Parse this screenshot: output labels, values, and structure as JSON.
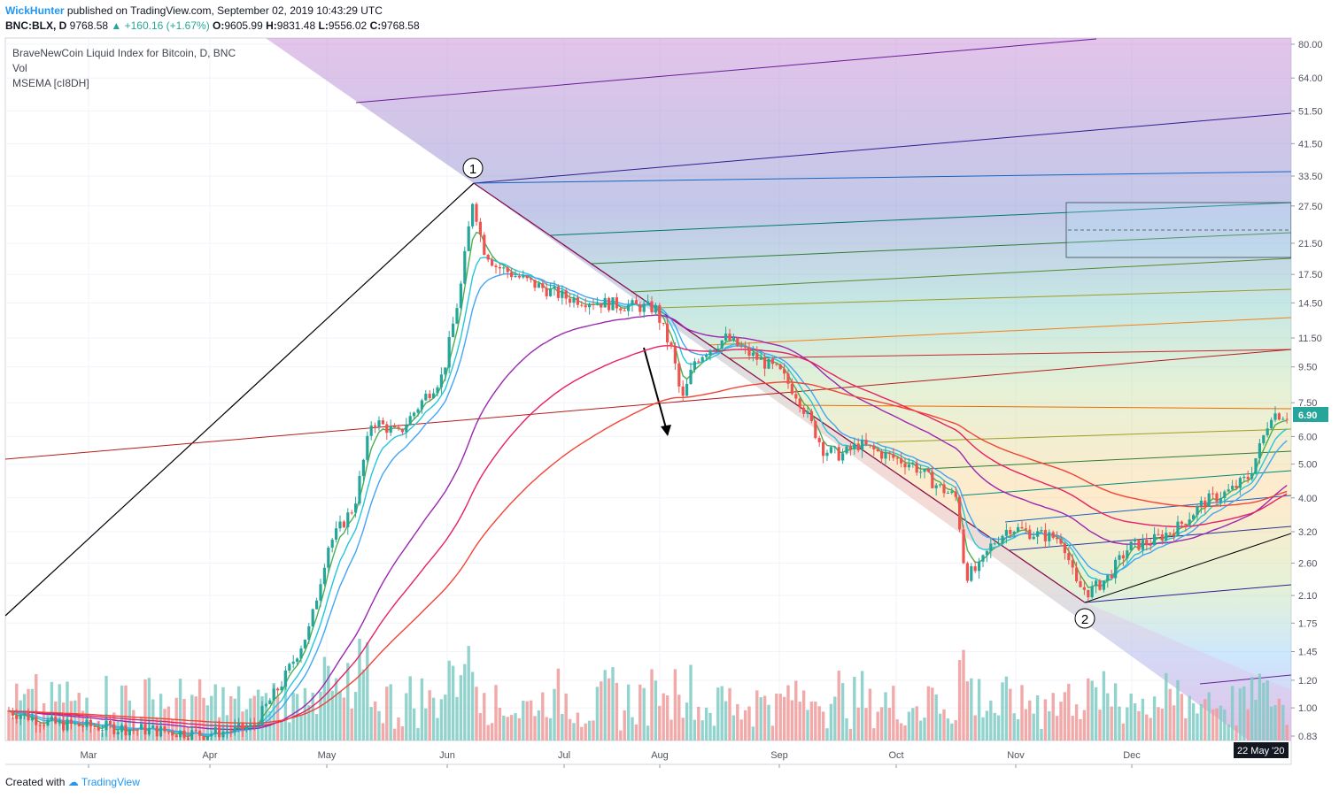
{
  "header": {
    "user": "WickHunter",
    "published": "published on TradingView.com, September 02, 2019 10:43:29 UTC",
    "symbol": "BNC:BLX, D",
    "last": "9768.58",
    "change": "▲ +160.16 (+1.67%)",
    "o_label": "O:",
    "o": "9605.99",
    "h_label": "H:",
    "h": "9831.48",
    "l_label": "L:",
    "l": "9556.02",
    "c_label": "C:",
    "c": "9768.58"
  },
  "legend": {
    "title": "BraveNewCoin Liquid Index for Bitcoin, D, BNC",
    "vol": "Vol",
    "msema": "MSEMA [cI8DH]"
  },
  "footer": {
    "created": "Created with",
    "brand": "TradingView"
  },
  "annotations": {
    "pivot1": "1",
    "pivot2": "2"
  },
  "price_label": "6.90",
  "date_label": "22 May '20",
  "chart_data": {
    "type": "candlestick",
    "y_scale": "log",
    "ylim": [
      0.8,
      84
    ],
    "y_ticks": [
      "80.00",
      "64.00",
      "51.50",
      "41.50",
      "33.50",
      "27.50",
      "21.50",
      "17.50",
      "14.50",
      "11.50",
      "9.50",
      "7.50",
      "6.00",
      "5.00",
      "4.00",
      "3.20",
      "2.60",
      "2.10",
      "1.75",
      "1.45",
      "1.20",
      "1.00",
      "0.83"
    ],
    "x_ticks": [
      "Mar",
      "Apr",
      "May",
      "Jun",
      "Jul",
      "Aug",
      "Sep",
      "Oct",
      "Nov",
      "Dec"
    ],
    "last_value": 6.9,
    "ema_lines": [
      {
        "name": "fast",
        "color": "#4caf50"
      },
      {
        "name": "med",
        "color": "#26c6da"
      },
      {
        "name": "slow",
        "color": "#42a5f5"
      },
      {
        "name": "ema100",
        "color": "#9c27b0"
      },
      {
        "name": "ema150",
        "color": "#e91e63"
      },
      {
        "name": "ema200",
        "color": "#f44336"
      }
    ],
    "colors": {
      "up": "#26a69a",
      "down": "#ef5350",
      "vol_up": "#80cbc4",
      "vol_down": "#ef9a9a"
    }
  }
}
